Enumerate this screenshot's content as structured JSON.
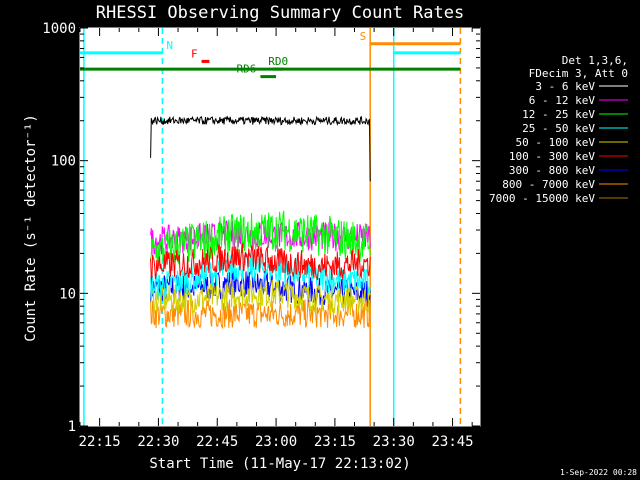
{
  "chart_data": {
    "type": "line",
    "title": "RHESSI Observing Summary Count Rates",
    "xlabel": "Start Time (11-May-17 22:13:02)",
    "ylabel": "Count Rate (s⁻¹ detector⁻¹)",
    "yscale": "log",
    "ylim": [
      1,
      1000
    ],
    "xlim": [
      "22:10",
      "23:52"
    ],
    "x_ticks": [
      "22:15",
      "22:30",
      "22:45",
      "23:00",
      "23:15",
      "23:30",
      "23:45"
    ],
    "y_ticks": [
      "1",
      "10",
      "100",
      "1000"
    ],
    "footer": "1-Sep-2022 00:28",
    "legend": {
      "placement": "top-right",
      "header": [
        "Det 1,3,6,",
        "FDecim 3, Att 0"
      ],
      "entries": [
        {
          "label": "3 - 6 keV",
          "color": "#000000"
        },
        {
          "label": "6 - 12 keV",
          "color": "#ff00ff"
        },
        {
          "label": "12 - 25 keV",
          "color": "#00ff00"
        },
        {
          "label": "25 - 50 keV",
          "color": "#00ffff"
        },
        {
          "label": "50 - 100 keV",
          "color": "#d2d200"
        },
        {
          "label": "100 - 300 keV",
          "color": "#ff0000"
        },
        {
          "label": "300 - 800 keV",
          "color": "#0000ff"
        },
        {
          "label": "800 - 7000 keV",
          "color": "#ff8c00"
        },
        {
          "label": "7000 - 15000 keV",
          "color": "#a07800"
        }
      ]
    },
    "series": [
      {
        "name": "3 - 6 keV",
        "color": "#000000",
        "start": "22:28",
        "end": "23:24",
        "values": [
          200
        ]
      },
      {
        "name": "6 - 12 keV",
        "color": "#ff00ff",
        "start": "22:28",
        "end": "23:24",
        "values": [
          25,
          26,
          28,
          27,
          27,
          26
        ]
      },
      {
        "name": "12 - 25 keV",
        "color": "#00ff00",
        "start": "22:28",
        "end": "23:24",
        "values": [
          20,
          24,
          28,
          30,
          27,
          24
        ]
      },
      {
        "name": "25 - 50 keV",
        "color": "#00ffff",
        "start": "22:28",
        "end": "23:24",
        "values": [
          11,
          13,
          16,
          15,
          13,
          12
        ]
      },
      {
        "name": "50 - 100 keV",
        "color": "#d2d200",
        "start": "22:28",
        "end": "23:24",
        "values": [
          9,
          9,
          10,
          10,
          9,
          9
        ]
      },
      {
        "name": "100 - 300 keV",
        "color": "#ff0000",
        "start": "22:28",
        "end": "23:24",
        "values": [
          16,
          17,
          19,
          17,
          16,
          17
        ]
      },
      {
        "name": "300 - 800 keV",
        "color": "#0000ff",
        "start": "22:28",
        "end": "23:24",
        "values": [
          11,
          11,
          12,
          11,
          10,
          10
        ]
      },
      {
        "name": "800 - 7000 keV",
        "color": "#ff8c00",
        "start": "22:28",
        "end": "23:24",
        "values": [
          7,
          7,
          7,
          7,
          7,
          7
        ]
      }
    ],
    "flags": [
      {
        "label": "N",
        "color": "#00ffff",
        "start": "22:10",
        "end": "22:31",
        "value": 650
      },
      {
        "label": "S",
        "color": "#ff8c00",
        "start": "23:24",
        "end": "23:47",
        "value": 760
      },
      {
        "label": "",
        "color": "#00ffff",
        "start": "23:30",
        "end": "23:47",
        "value": 650
      },
      {
        "label": "F",
        "color": "#ff0000",
        "start": "22:41",
        "end": "22:43",
        "value": 560
      },
      {
        "label": "RD0",
        "color": "#008000",
        "start": "22:10",
        "end": "23:47",
        "value": 490
      },
      {
        "label": "RD6",
        "color": "#008000",
        "start": "22:56",
        "end": "23:00",
        "value": 430
      },
      {
        "label": "",
        "color": "#008000",
        "start": "22:59",
        "end": "23:02",
        "value": 490
      }
    ],
    "vlines": [
      {
        "time": "22:11",
        "color": "#00ffff",
        "style": "solid"
      },
      {
        "time": "22:31",
        "color": "#00ffff",
        "style": "dashed"
      },
      {
        "time": "23:24",
        "color": "#ff8c00",
        "style": "solid"
      },
      {
        "time": "23:30",
        "color": "#00ffff",
        "style": "solid"
      },
      {
        "time": "23:47",
        "color": "#ff8c00",
        "style": "dashed"
      }
    ]
  }
}
